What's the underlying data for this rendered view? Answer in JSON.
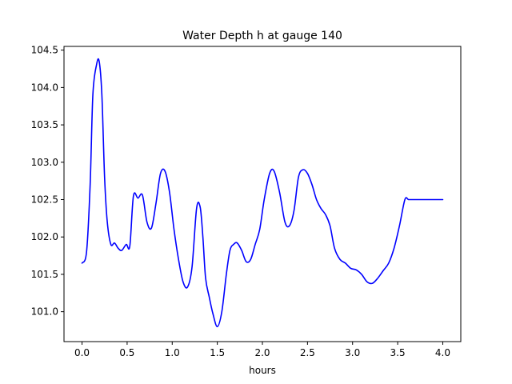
{
  "chart_data": {
    "type": "line",
    "title": "Water Depth h at gauge 140",
    "xlabel": "hours",
    "ylabel": "",
    "xlim": [
      -0.2,
      4.2
    ],
    "ylim": [
      100.6,
      104.55
    ],
    "x_ticks": [
      0.0,
      0.5,
      1.0,
      1.5,
      2.0,
      2.5,
      3.0,
      3.5,
      4.0
    ],
    "x_tick_labels": [
      "0.0",
      "0.5",
      "1.0",
      "1.5",
      "2.0",
      "2.5",
      "3.0",
      "3.5",
      "4.0"
    ],
    "y_ticks": [
      101.0,
      101.5,
      102.0,
      102.5,
      103.0,
      103.5,
      104.0,
      104.5
    ],
    "y_tick_labels": [
      "101.0",
      "101.5",
      "102.0",
      "102.5",
      "103.0",
      "103.5",
      "104.0",
      "104.5"
    ],
    "grid": false,
    "series": [
      {
        "color": "#0000ff",
        "x": [
          0.0,
          0.05,
          0.09,
          0.12,
          0.16,
          0.19,
          0.22,
          0.25,
          0.28,
          0.32,
          0.36,
          0.4,
          0.44,
          0.49,
          0.53,
          0.57,
          0.62,
          0.67,
          0.72,
          0.77,
          0.82,
          0.87,
          0.92,
          0.97,
          1.02,
          1.07,
          1.12,
          1.17,
          1.22,
          1.27,
          1.31,
          1.34,
          1.37,
          1.41,
          1.45,
          1.5,
          1.55,
          1.6,
          1.64,
          1.68,
          1.72,
          1.77,
          1.82,
          1.87,
          1.92,
          1.97,
          2.02,
          2.08,
          2.13,
          2.19,
          2.25,
          2.3,
          2.35,
          2.4,
          2.45,
          2.5,
          2.55,
          2.6,
          2.65,
          2.7,
          2.75,
          2.8,
          2.86,
          2.92,
          2.98,
          3.04,
          3.1,
          3.16,
          3.22,
          3.28,
          3.34,
          3.4,
          3.46,
          3.52,
          3.58,
          3.62,
          3.66,
          3.72,
          3.78,
          3.84,
          3.9,
          3.96,
          4.0
        ],
        "y": [
          101.65,
          101.8,
          102.7,
          103.9,
          104.3,
          104.35,
          103.9,
          102.8,
          102.2,
          101.9,
          101.92,
          101.85,
          101.82,
          101.9,
          101.88,
          102.55,
          102.52,
          102.56,
          102.2,
          102.12,
          102.45,
          102.85,
          102.88,
          102.6,
          102.1,
          101.7,
          101.4,
          101.33,
          101.6,
          102.38,
          102.4,
          102.0,
          101.45,
          101.2,
          100.98,
          100.8,
          101.0,
          101.5,
          101.82,
          101.9,
          101.92,
          101.82,
          101.67,
          101.7,
          101.9,
          102.1,
          102.5,
          102.85,
          102.88,
          102.6,
          102.2,
          102.15,
          102.35,
          102.8,
          102.9,
          102.85,
          102.7,
          102.5,
          102.38,
          102.3,
          102.15,
          101.85,
          101.7,
          101.65,
          101.58,
          101.56,
          101.5,
          101.4,
          101.38,
          101.45,
          101.55,
          101.65,
          101.85,
          102.15,
          102.5,
          102.5,
          102.5,
          102.5,
          102.5,
          102.5,
          102.5,
          102.5,
          102.5
        ]
      }
    ]
  }
}
